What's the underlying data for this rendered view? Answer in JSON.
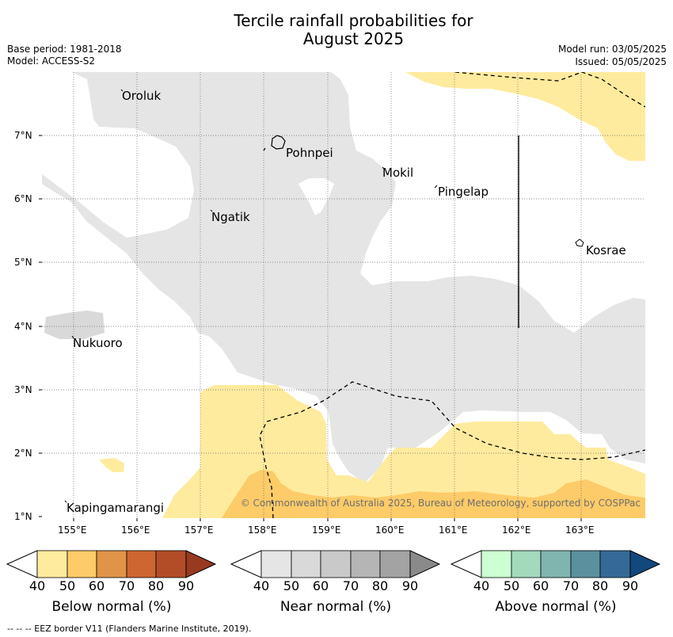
{
  "header": {
    "title_line1": "Tercile rainfall probabilities for",
    "title_line2": "August 2025",
    "base_period": "Base period: 1981-2018",
    "model": "Model: ACCESS-S2",
    "model_run": "Model run: 03/05/2025",
    "issued": "Issued: 05/05/2025"
  },
  "map": {
    "lat_labels": [
      "7°N",
      "6°N",
      "5°N",
      "4°N",
      "3°N",
      "2°N",
      "1°N"
    ],
    "lon_labels": [
      "155°E",
      "156°E",
      "157°E",
      "158°E",
      "159°E",
      "160°E",
      "161°E",
      "162°E",
      "163°E"
    ],
    "places": [
      "Oroluk",
      "Pohnpei",
      "Mokil",
      "Pingelap",
      "Ngatik",
      "Kosrae",
      "Nukuoro",
      "Kapingamarangi"
    ],
    "copyright": "© Commonwealth of Australia 2025, Bureau of Meteorology, supported by COSPPac",
    "colors": {
      "near_normal_40": "#e5e5e5",
      "near_normal_50": "#d9d9d9",
      "below_40": "#ffeb9e",
      "below_50": "#fdcb68",
      "eez_line": "#000000"
    }
  },
  "colorbars": [
    {
      "label": "Below normal (%)",
      "ticks": [
        "40",
        "50",
        "60",
        "70",
        "80",
        "90"
      ],
      "colors": [
        "#ffeb9e",
        "#fdcb68",
        "#e09447",
        "#cd6630",
        "#b24d27",
        "#973a20"
      ]
    },
    {
      "label": "Near normal (%)",
      "ticks": [
        "40",
        "50",
        "60",
        "70",
        "80",
        "90"
      ],
      "colors": [
        "#e5e5e5",
        "#d9d9d9",
        "#c9c9c9",
        "#b5b5b5",
        "#a3a3a3",
        "#8a8a8a"
      ]
    },
    {
      "label": "Above normal (%)",
      "ticks": [
        "40",
        "50",
        "60",
        "70",
        "80",
        "90"
      ],
      "colors": [
        "#ccffd2",
        "#a3d9bd",
        "#80b5af",
        "#5b919f",
        "#356a96",
        "#13487d"
      ]
    }
  ],
  "footer": "--  --  -- EEZ border V11 (Flanders Marine Institute, 2019)."
}
